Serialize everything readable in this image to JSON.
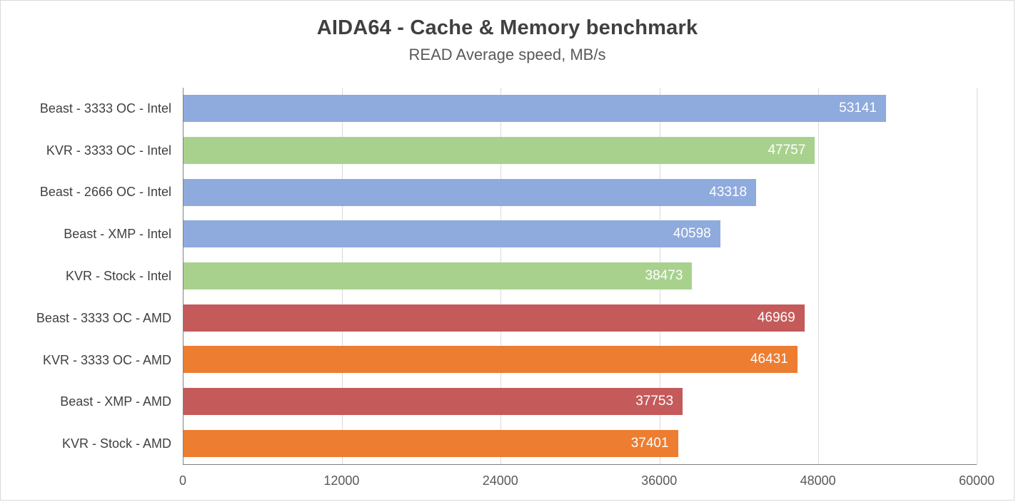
{
  "chart_data": {
    "type": "bar",
    "orientation": "horizontal",
    "title": "AIDA64 - Cache & Memory benchmark",
    "subtitle": "READ Average speed, MB/s",
    "categories": [
      "Beast - 3333 OC - Intel",
      "KVR - 3333 OC - Intel",
      "Beast - 2666 OC - Intel",
      "Beast - XMP - Intel",
      "KVR - Stock - Intel",
      "Beast - 3333 OC - AMD",
      "KVR - 3333 OC - AMD",
      "Beast - XMP - AMD",
      "KVR - Stock - AMD"
    ],
    "values": [
      53141,
      47757,
      43318,
      40598,
      38473,
      46969,
      46431,
      37753,
      37401
    ],
    "bar_colors": [
      "#8faadc",
      "#a9d18e",
      "#8faadc",
      "#8faadc",
      "#a9d18e",
      "#c55a5a",
      "#ed7d31",
      "#c55a5a",
      "#ed7d31"
    ],
    "value_label_color": "#ffffff",
    "xlabel": "",
    "ylabel": "",
    "xlim": [
      0,
      60000
    ],
    "xticks": [
      0,
      12000,
      24000,
      36000,
      48000,
      60000
    ],
    "grid": true,
    "legend": "none"
  }
}
